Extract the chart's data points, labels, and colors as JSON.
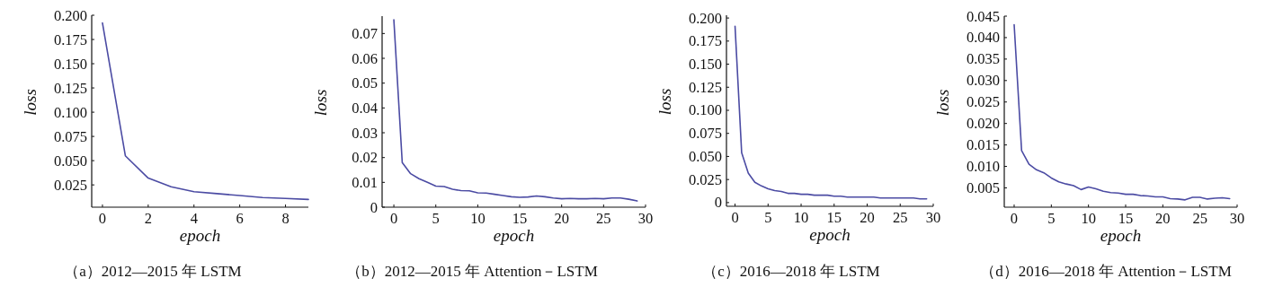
{
  "chart_data": [
    {
      "type": "line",
      "title": "（a）2012—2015 年 LSTM",
      "xlabel": "epoch",
      "ylabel": "loss",
      "x": [
        0,
        1,
        2,
        3,
        4,
        5,
        6,
        7,
        8,
        9
      ],
      "xlim": [
        -0.47,
        9
      ],
      "xticks": [
        0,
        2,
        4,
        6,
        8
      ],
      "ylim": [
        0.002,
        0.2
      ],
      "yticks": [
        {
          "value": 0.025,
          "label": "0.025"
        },
        {
          "value": 0.05,
          "label": "0.050"
        },
        {
          "value": 0.075,
          "label": "0.075"
        },
        {
          "value": 0.1,
          "label": "0.100"
        },
        {
          "value": 0.125,
          "label": "0.125"
        },
        {
          "value": 0.15,
          "label": "0.150"
        },
        {
          "value": 0.175,
          "label": "0.175"
        },
        {
          "value": 0.2,
          "label": "0.200"
        }
      ],
      "grid": false,
      "series": [
        {
          "color": "#4b4ba3",
          "values": [
            0.192,
            0.055,
            0.032,
            0.023,
            0.018,
            0.016,
            0.014,
            0.012,
            0.011,
            0.01
          ]
        }
      ]
    },
    {
      "type": "line",
      "title": "（b）2012—2015 年 Attention－LSTM",
      "xlabel": "epoch",
      "ylabel": "loss",
      "x": [
        0,
        1,
        2,
        3,
        4,
        5,
        6,
        7,
        8,
        9,
        10,
        11,
        12,
        13,
        14,
        15,
        16,
        17,
        18,
        19,
        20,
        21,
        22,
        23,
        24,
        25,
        26,
        27,
        28,
        29
      ],
      "xlim": [
        -1.4,
        30
      ],
      "xticks": [
        0,
        5,
        10,
        15,
        20,
        25,
        30
      ],
      "ylim": [
        0,
        0.077
      ],
      "yticks": [
        0,
        0.01,
        0.02,
        0.03,
        0.04,
        0.05,
        0.06,
        0.07
      ],
      "grid": false,
      "series": [
        {
          "color": "#4b4ba3",
          "values": [
            0.0755,
            0.018,
            0.0135,
            0.0115,
            0.01,
            0.0085,
            0.0083,
            0.0072,
            0.0067,
            0.0066,
            0.0058,
            0.0057,
            0.0052,
            0.0047,
            0.0042,
            0.004,
            0.0041,
            0.0045,
            0.0042,
            0.0037,
            0.0034,
            0.0035,
            0.0034,
            0.0034,
            0.0035,
            0.0034,
            0.0037,
            0.0037,
            0.0032,
            0.0025
          ]
        }
      ]
    },
    {
      "type": "line",
      "title": "（c）2016—2018 年 LSTM",
      "xlabel": "epoch",
      "ylabel": "loss",
      "x": [
        0,
        1,
        2,
        3,
        4,
        5,
        6,
        7,
        8,
        9,
        10,
        11,
        12,
        13,
        14,
        15,
        16,
        17,
        18,
        19,
        20,
        21,
        22,
        23,
        24,
        25,
        26,
        27,
        28,
        29
      ],
      "xlim": [
        -1.3,
        30
      ],
      "xticks": [
        0,
        5,
        10,
        15,
        20,
        25,
        30
      ],
      "ylim": [
        -0.004,
        0.203
      ],
      "yticks": [
        0,
        {
          "value": 0.025,
          "label": "0.025"
        },
        {
          "value": 0.05,
          "label": "0.050"
        },
        {
          "value": 0.075,
          "label": "0.075"
        },
        {
          "value": 0.1,
          "label": "0.100"
        },
        {
          "value": 0.125,
          "label": "0.125"
        },
        {
          "value": 0.15,
          "label": "0.150"
        },
        {
          "value": 0.175,
          "label": "0.175"
        },
        {
          "value": 0.2,
          "label": "0.200"
        }
      ],
      "grid": false,
      "series": [
        {
          "color": "#4b4ba3",
          "values": [
            0.191,
            0.054,
            0.032,
            0.022,
            0.018,
            0.015,
            0.013,
            0.012,
            0.01,
            0.01,
            0.009,
            0.009,
            0.008,
            0.008,
            0.008,
            0.007,
            0.007,
            0.006,
            0.006,
            0.006,
            0.006,
            0.006,
            0.005,
            0.005,
            0.005,
            0.005,
            0.005,
            0.005,
            0.004,
            0.004
          ]
        }
      ]
    },
    {
      "type": "line",
      "title": "（d）2016—2018 年 Attention－LSTM",
      "xlabel": "epoch",
      "ylabel": "loss",
      "x": [
        0,
        1,
        2,
        3,
        4,
        5,
        6,
        7,
        8,
        9,
        10,
        11,
        12,
        13,
        14,
        15,
        16,
        17,
        18,
        19,
        20,
        21,
        22,
        23,
        24,
        25,
        26,
        27,
        28,
        29
      ],
      "xlim": [
        -1.33,
        30
      ],
      "xticks": [
        0,
        5,
        10,
        15,
        20,
        25,
        30
      ],
      "ylim": [
        0.0005,
        0.045
      ],
      "yticks": [
        {
          "value": 0.005,
          "label": "0.005"
        },
        {
          "value": 0.01,
          "label": "0.010"
        },
        {
          "value": 0.015,
          "label": "0.015"
        },
        {
          "value": 0.02,
          "label": "0.020"
        },
        {
          "value": 0.025,
          "label": "0.025"
        },
        {
          "value": 0.03,
          "label": "0.030"
        },
        {
          "value": 0.035,
          "label": "0.035"
        },
        {
          "value": 0.04,
          "label": "0.040"
        },
        {
          "value": 0.045,
          "label": "0.045"
        }
      ],
      "grid": false,
      "series": [
        {
          "color": "#4b4ba3",
          "values": [
            0.043,
            0.0137,
            0.0105,
            0.0092,
            0.0085,
            0.0073,
            0.0064,
            0.0059,
            0.0055,
            0.0046,
            0.0052,
            0.0048,
            0.0042,
            0.0039,
            0.0038,
            0.0035,
            0.0035,
            0.0032,
            0.0031,
            0.0029,
            0.0029,
            0.0025,
            0.0024,
            0.0022,
            0.0028,
            0.0028,
            0.0024,
            0.0026,
            0.0027,
            0.0025
          ]
        }
      ]
    }
  ]
}
